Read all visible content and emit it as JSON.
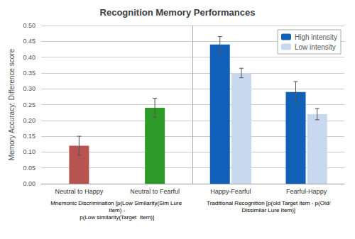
{
  "chart_data": {
    "type": "bar",
    "title": "Recognition Memory Performances",
    "ylabel": "Memory Accuracy: Difference score",
    "categories": [
      "Neutral to Happy",
      "Neutral to Fearful",
      "Happy-Fearful",
      "Fearful-Happy"
    ],
    "series": [
      {
        "colors": [
          "#b85450",
          "#2d9b27",
          null,
          null
        ],
        "values": [
          0.12,
          0.24,
          null,
          null
        ],
        "yerr": [
          0.03,
          0.03,
          null,
          null
        ]
      },
      {
        "name": "High intensity",
        "color": "#1060b8",
        "values": [
          null,
          null,
          0.44,
          0.29
        ],
        "yerr": [
          null,
          null,
          0.025,
          0.033
        ]
      },
      {
        "name": "Low intensity",
        "color": "#c8d8ee",
        "values": [
          null,
          null,
          0.35,
          0.22
        ],
        "yerr": [
          null,
          null,
          0.015,
          0.018
        ]
      }
    ],
    "ylim": [
      0,
      0.5
    ],
    "yticks": [
      {
        "value": 0,
        "label": "0.00"
      },
      0.05,
      {
        "value": 0.1,
        "label": "0.10"
      },
      0.15,
      {
        "value": 0.2,
        "label": "0.20"
      },
      0.25,
      {
        "value": 0.3,
        "label": "0.30"
      },
      0.35,
      {
        "value": 0.4,
        "label": "0.40"
      },
      0.45,
      {
        "value": 0.5,
        "label": "0.50"
      }
    ],
    "grid": true,
    "legend": "upper right",
    "annotations": [
      {
        "text": "Mnemonic Discrimination [p(Low Similarity(Sim Lure Item) -\np(Low similarity(Target  Item)]",
        "categories": [
          "Neutral to Happy",
          "Neutral to Fearful"
        ]
      },
      {
        "text": "Traditional Recognition [p(old Target item - p(Old/Dissimilar Lure Item)]",
        "categories": [
          "Happy-Fearful",
          "Fearful-Happy"
        ]
      }
    ]
  }
}
